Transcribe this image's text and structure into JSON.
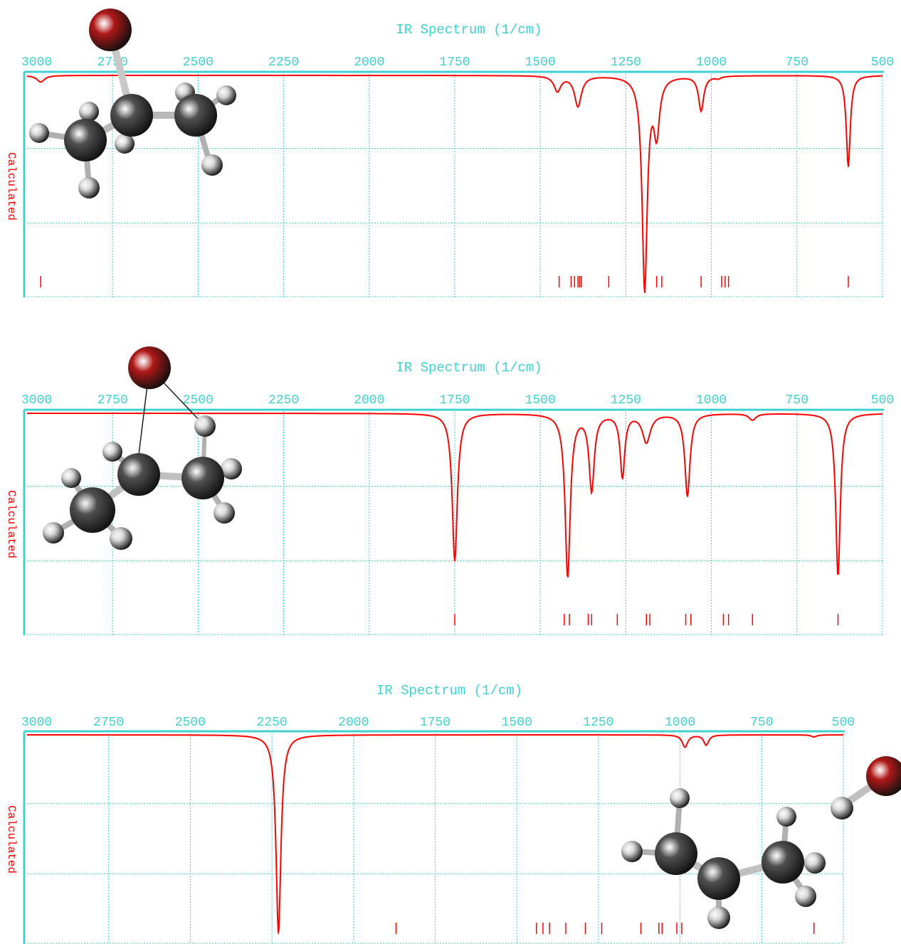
{
  "colors": {
    "axis": "#40d0d0",
    "grid": "#40c8d0",
    "spectrum": "#ff0000",
    "side_label": "#ff0000",
    "background": "#ffffff",
    "bromine_atom": "#b01818",
    "carbon_atom": "#505050",
    "hydrogen_atom": "#d8d8d8"
  },
  "chart_data": [
    {
      "type": "line",
      "title": "IR Spectrum (1/cm)",
      "ylabel": "Calculated",
      "x_ticks": [
        3000,
        2750,
        2500,
        2250,
        2000,
        1750,
        1500,
        1250,
        1000,
        750,
        500
      ],
      "xlim": [
        3000,
        500
      ],
      "ylim": [
        0,
        1
      ],
      "grid": true,
      "x_reversed": true,
      "molecule_icon": "2-bromopropane-molecule-icon",
      "peaks": [
        {
          "x": 2960,
          "intensity": 0.03,
          "width": 14
        },
        {
          "x": 1450,
          "intensity": 0.07,
          "width": 12
        },
        {
          "x": 1390,
          "intensity": 0.14,
          "width": 12
        },
        {
          "x": 1195,
          "intensity": 0.98,
          "width": 9
        },
        {
          "x": 1160,
          "intensity": 0.25,
          "width": 10
        },
        {
          "x": 1030,
          "intensity": 0.16,
          "width": 9
        },
        {
          "x": 980,
          "intensity": 0.01,
          "width": 10
        },
        {
          "x": 600,
          "intensity": 0.42,
          "width": 7
        }
      ],
      "stick_lines": [
        2960,
        1445,
        1410,
        1400,
        1390,
        1385,
        1380,
        1300,
        1160,
        1145,
        1030,
        970,
        960,
        950,
        600
      ]
    },
    {
      "type": "line",
      "title": "IR Spectrum (1/cm)",
      "ylabel": "Calculated",
      "x_ticks": [
        3000,
        2750,
        2500,
        2250,
        2000,
        1750,
        1500,
        1250,
        1000,
        750,
        500
      ],
      "xlim": [
        3000,
        500
      ],
      "ylim": [
        0,
        1
      ],
      "grid": true,
      "x_reversed": true,
      "molecule_icon": "transition-state-molecule-icon",
      "peaks": [
        {
          "x": 1750,
          "intensity": 0.68,
          "width": 9
        },
        {
          "x": 1420,
          "intensity": 0.75,
          "width": 9
        },
        {
          "x": 1350,
          "intensity": 0.35,
          "width": 9
        },
        {
          "x": 1260,
          "intensity": 0.29,
          "width": 8
        },
        {
          "x": 1190,
          "intensity": 0.13,
          "width": 14
        },
        {
          "x": 1070,
          "intensity": 0.38,
          "width": 9
        },
        {
          "x": 880,
          "intensity": 0.03,
          "width": 12
        },
        {
          "x": 630,
          "intensity": 0.75,
          "width": 8
        }
      ],
      "stick_lines": [
        1750,
        1430,
        1415,
        1360,
        1350,
        1275,
        1190,
        1180,
        1075,
        1060,
        965,
        950,
        880,
        630
      ]
    },
    {
      "type": "line",
      "title": "IR Spectrum (1/cm)",
      "ylabel": "Calculated",
      "x_ticks": [
        3000,
        2750,
        2500,
        2250,
        2000,
        1750,
        1500,
        1250,
        1000,
        750,
        500
      ],
      "xlim": [
        3000,
        500
      ],
      "ylim": [
        0,
        1
      ],
      "grid": true,
      "x_reversed": true,
      "molecule_icon": "propene-and-hbr-molecule-icon",
      "peaks": [
        {
          "x": 2230,
          "intensity": 0.97,
          "width": 9
        },
        {
          "x": 985,
          "intensity": 0.06,
          "width": 10
        },
        {
          "x": 920,
          "intensity": 0.05,
          "width": 9
        },
        {
          "x": 590,
          "intensity": 0.01,
          "width": 10
        }
      ],
      "stick_lines": [
        2230,
        1870,
        1440,
        1420,
        1400,
        1350,
        1290,
        1240,
        1120,
        1065,
        1055,
        1010,
        995,
        590
      ]
    }
  ]
}
